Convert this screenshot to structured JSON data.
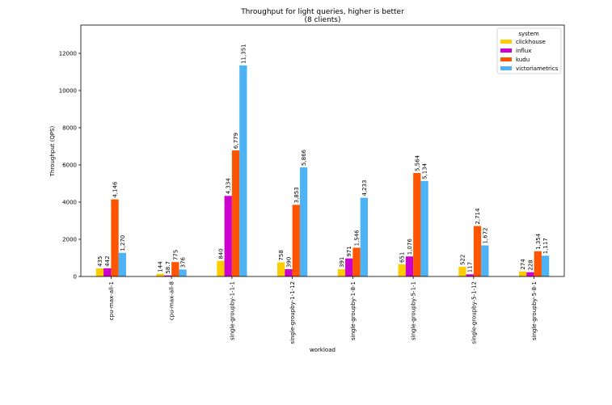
{
  "chart_data": {
    "type": "bar",
    "title": "Throughput for light queries, higher is better",
    "subtitle": "(8 clients)",
    "xlabel": "workload",
    "ylabel": "Throughput (QPS)",
    "ylim": [
      0,
      13520
    ],
    "yticks": [
      0,
      2000,
      4000,
      6000,
      8000,
      10000,
      12000
    ],
    "grid": false,
    "legend": {
      "title": "system",
      "placement": "top-right"
    },
    "categories": [
      "cpu-max-all-1",
      "cpu-max-all-8",
      "single-groupby-1-1-1",
      "single-groupby-1-1-12",
      "single-groupby-1-8-1",
      "single-groupby-5-1-1",
      "single-groupby-5-1-12",
      "single-groupby-5-8-1"
    ],
    "series": [
      {
        "name": "clickhouse",
        "color": "#ffcc00",
        "values": [
          435,
          144,
          840,
          758,
          391,
          651,
          522,
          274
        ],
        "labels": [
          "435",
          "144",
          "840",
          "758",
          "391",
          "651",
          "522",
          "274"
        ]
      },
      {
        "name": "influx",
        "color": "#cc00cc",
        "values": [
          442,
          58.7,
          4334,
          390,
          971,
          1076,
          117,
          228
        ],
        "labels": [
          "442",
          "58.7",
          "4,334",
          "390",
          "971",
          "1,076",
          "117",
          "228"
        ]
      },
      {
        "name": "kudu",
        "color": "#ff5500",
        "values": [
          4146,
          775,
          6779,
          3853,
          1546,
          5564,
          2714,
          1354
        ],
        "labels": [
          "4,146",
          "775",
          "6,779",
          "3,853",
          "1,546",
          "5,564",
          "2,714",
          "1,354"
        ]
      },
      {
        "name": "victoriametrics",
        "color": "#4db3f5",
        "values": [
          1270,
          376,
          11351,
          5866,
          4233,
          5134,
          1672,
          1117
        ],
        "labels": [
          "1,270",
          "376",
          "11,351",
          "5,866",
          "4,233",
          "5,134",
          "1,672",
          "1,117"
        ]
      }
    ]
  }
}
